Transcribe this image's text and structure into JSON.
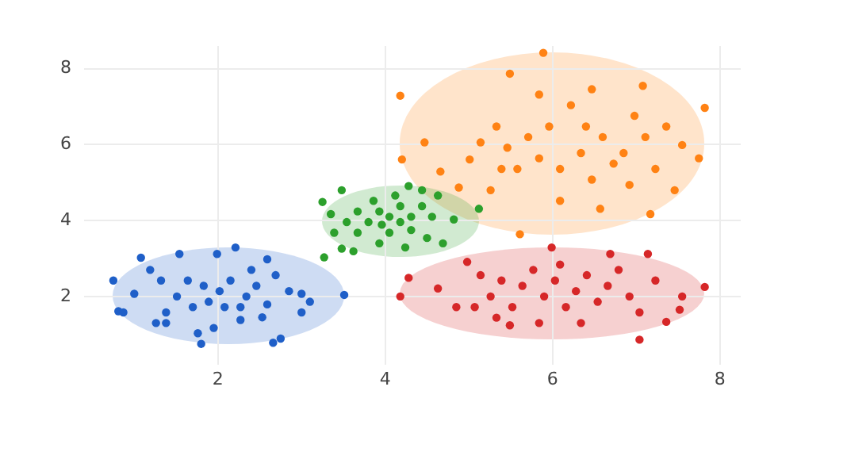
{
  "chart_data": {
    "type": "scatter",
    "xlim": [
      0.4,
      8.25
    ],
    "ylim": [
      0.2,
      8.6
    ],
    "xticks": [
      2,
      4,
      6,
      8
    ],
    "yticks": [
      2,
      4,
      6,
      8
    ],
    "grid": true,
    "legend": false,
    "marker": "circle",
    "series": [
      {
        "color": "#1f5fc8",
        "x": [
          0.75,
          0.81,
          0.87,
          1.08,
          2.21,
          1.8,
          2.66,
          2.75,
          3.51,
          3.1,
          3.0,
          3.0,
          1.0,
          1.26,
          1.38,
          1.54,
          1.99,
          2.59,
          2.69,
          2.85,
          1.76,
          1.95,
          2.27,
          2.53,
          1.51,
          1.64,
          1.83,
          2.02,
          2.15,
          2.34,
          2.46,
          1.7,
          1.89,
          2.08,
          2.27,
          1.32,
          1.19,
          2.4,
          1.38,
          2.59
        ],
        "values": [
          2.42,
          1.61,
          1.58,
          3.02,
          3.29,
          0.75,
          0.78,
          0.89,
          2.04,
          1.86,
          2.07,
          1.58,
          2.07,
          1.3,
          1.3,
          3.12,
          3.12,
          2.98,
          2.56,
          2.14,
          1.03,
          1.17,
          1.38,
          1.45,
          2.0,
          2.42,
          2.28,
          2.14,
          2.42,
          2.0,
          2.28,
          1.72,
          1.86,
          1.72,
          1.72,
          2.42,
          2.7,
          2.7,
          1.58,
          1.79
        ]
      },
      {
        "color": "#ff8214",
        "x": [
          4.18,
          4.2,
          5.61,
          5.89,
          7.82,
          7.75,
          5.49,
          7.08,
          7.17,
          6.57,
          4.88,
          4.47,
          4.66,
          7.46,
          7.55,
          5.01,
          5.14,
          5.33,
          5.46,
          5.58,
          5.71,
          5.84,
          5.96,
          6.09,
          6.22,
          6.34,
          6.47,
          6.6,
          6.73,
          6.85,
          6.98,
          7.11,
          7.23,
          5.84,
          6.47,
          5.26,
          6.09,
          6.92,
          7.36,
          5.39,
          6.4
        ],
        "values": [
          7.29,
          5.61,
          3.64,
          8.42,
          6.97,
          5.64,
          7.87,
          7.55,
          4.17,
          4.31,
          4.87,
          6.06,
          5.29,
          4.8,
          5.99,
          5.61,
          6.06,
          6.48,
          5.92,
          5.36,
          6.2,
          5.64,
          6.48,
          5.36,
          7.04,
          5.78,
          5.08,
          6.2,
          5.5,
          5.78,
          6.76,
          6.2,
          5.36,
          7.32,
          7.46,
          4.8,
          4.52,
          4.94,
          6.48,
          5.36,
          6.48
        ]
      },
      {
        "color": "#2ca02c",
        "x": [
          3.25,
          3.27,
          3.48,
          4.28,
          4.63,
          5.12,
          4.82,
          4.69,
          3.48,
          3.62,
          4.24,
          3.93,
          3.39,
          3.35,
          3.67,
          3.8,
          3.93,
          4.05,
          4.18,
          4.31,
          4.44,
          4.56,
          3.86,
          4.12,
          3.67,
          4.05,
          4.31,
          4.5,
          3.54,
          4.44,
          3.96,
          4.18
        ],
        "values": [
          4.49,
          3.03,
          4.8,
          4.91,
          4.66,
          4.31,
          4.03,
          3.4,
          3.26,
          3.19,
          3.29,
          3.4,
          3.68,
          4.17,
          4.24,
          3.96,
          4.24,
          4.1,
          4.38,
          4.1,
          4.38,
          4.1,
          4.52,
          4.66,
          3.68,
          3.68,
          3.75,
          3.54,
          3.96,
          4.8,
          3.89,
          3.96
        ]
      },
      {
        "color": "#d62728",
        "x": [
          4.18,
          4.28,
          7.82,
          5.99,
          7.14,
          7.04,
          5.49,
          7.36,
          4.98,
          4.63,
          4.85,
          7.55,
          7.52,
          6.69,
          5.14,
          5.26,
          5.39,
          5.52,
          5.64,
          5.77,
          5.9,
          6.03,
          6.16,
          6.28,
          6.41,
          6.54,
          6.66,
          6.79,
          6.92,
          7.04,
          7.23,
          5.33,
          5.84,
          6.34,
          6.09,
          5.07
        ],
        "values": [
          2.0,
          2.49,
          2.25,
          3.29,
          3.12,
          0.86,
          1.24,
          1.33,
          2.91,
          2.21,
          1.72,
          2.0,
          1.65,
          3.12,
          2.56,
          2.0,
          2.42,
          1.72,
          2.28,
          2.7,
          2.0,
          2.42,
          1.72,
          2.14,
          2.56,
          1.86,
          2.28,
          2.7,
          2.0,
          1.58,
          2.42,
          1.44,
          1.3,
          1.3,
          2.84,
          1.72
        ]
      }
    ]
  }
}
